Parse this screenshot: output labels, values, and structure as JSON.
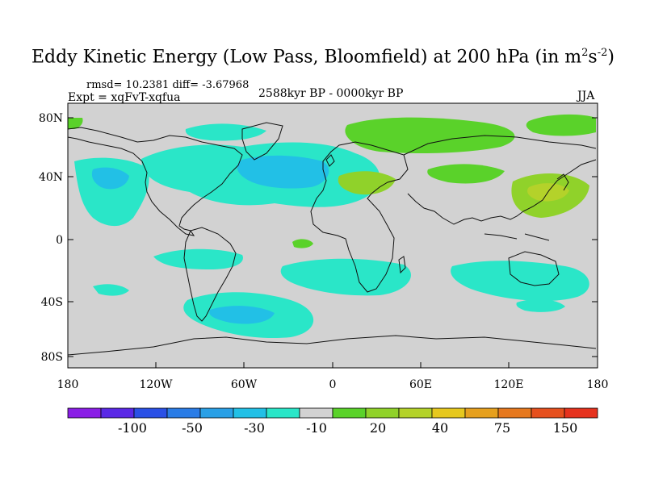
{
  "title": {
    "text": "Eddy Kinetic Energy (Low Pass, Bloomfield) at 200 hPa (in m",
    "sup1": "2",
    "mid": "s",
    "sup2": "-2",
    "end": ")"
  },
  "stats": "rmsd= 10.2381 diff= -3.67968",
  "expt": "Expt = xqFvT-xqfua",
  "period": "2588kyr BP - 0000kyr BP",
  "season": "JJA",
  "map": {
    "lat_ticks": [
      "80N",
      "40N",
      "0",
      "40S",
      "80S"
    ],
    "lon_ticks": [
      "180",
      "120W",
      "60W",
      "0",
      "60E",
      "120E",
      "180"
    ]
  },
  "colorbar": {
    "colors": [
      "#8a1ee6",
      "#5a28e6",
      "#2a50e6",
      "#2a7ce6",
      "#2aa0e6",
      "#22c0e6",
      "#2ae6c8",
      "#d2d2d2",
      "#5ad22a",
      "#90d22a",
      "#b4d22a",
      "#e6c81e",
      "#e6a01e",
      "#e6781e",
      "#e6501e",
      "#e6321e"
    ],
    "labels": [
      "-100",
      "-50",
      "-30",
      "-10",
      "20",
      "40",
      "75",
      "150"
    ]
  }
}
